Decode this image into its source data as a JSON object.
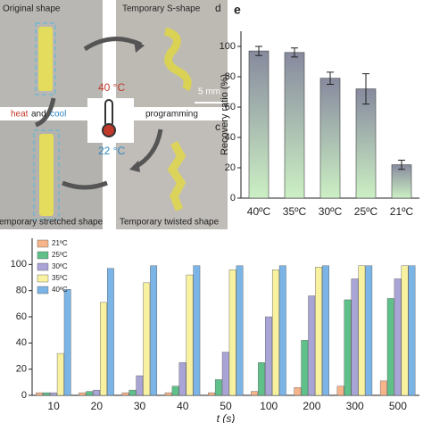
{
  "photo": {
    "original": "Original shape",
    "s_shape": "Temporary S-shape",
    "label_d": "d",
    "hot": "40 °C",
    "scale": "5 mm",
    "heat": "heat",
    "and": "and",
    "cool": "cool",
    "programming": "programming",
    "cold": "22 °C",
    "label_c": "c",
    "stretched": "Temporary stretched shape",
    "twisted": "Temporary twisted shape"
  },
  "chart_data": [
    {
      "type": "bar",
      "panel": "e",
      "categories": [
        "40ºC",
        "35ºC",
        "30ºC",
        "25ºC",
        "21ºC"
      ],
      "values": [
        97,
        96,
        79,
        72,
        22
      ],
      "errors": [
        3,
        3,
        4,
        10,
        3
      ],
      "ylabel": "Recovery ratio (%)",
      "ylim": [
        0,
        110
      ],
      "yticks": [
        0,
        20,
        40,
        60,
        80,
        100
      ],
      "gradient": [
        "#878a9e",
        "#ccf0c4"
      ]
    },
    {
      "type": "grouped-bar",
      "xlabel": "t (s)",
      "categories": [
        "10",
        "20",
        "30",
        "40",
        "50",
        "100",
        "200",
        "300",
        "500"
      ],
      "series": [
        {
          "name": "21ºC",
          "color": "#f6b48a",
          "values": [
            2,
            2,
            2,
            2,
            2,
            3,
            6,
            7,
            11
          ]
        },
        {
          "name": "25ºC",
          "color": "#5fc08a",
          "values": [
            2,
            3,
            4,
            7,
            12,
            25,
            42,
            73,
            74
          ]
        },
        {
          "name": "30ºC",
          "color": "#a9a4d6",
          "values": [
            2,
            4,
            15,
            25,
            33,
            60,
            76,
            89,
            89
          ]
        },
        {
          "name": "35ºC",
          "color": "#f7f1a0",
          "values": [
            32,
            71,
            86,
            92,
            96,
            96,
            98,
            99,
            99
          ]
        },
        {
          "name": "40ºC",
          "color": "#7bb4e6",
          "values": [
            81,
            97,
            99,
            99,
            99,
            99,
            99,
            99,
            99
          ]
        }
      ],
      "ylim": [
        0,
        120
      ],
      "yticks": [
        0,
        20,
        40,
        60,
        80,
        100
      ]
    }
  ]
}
